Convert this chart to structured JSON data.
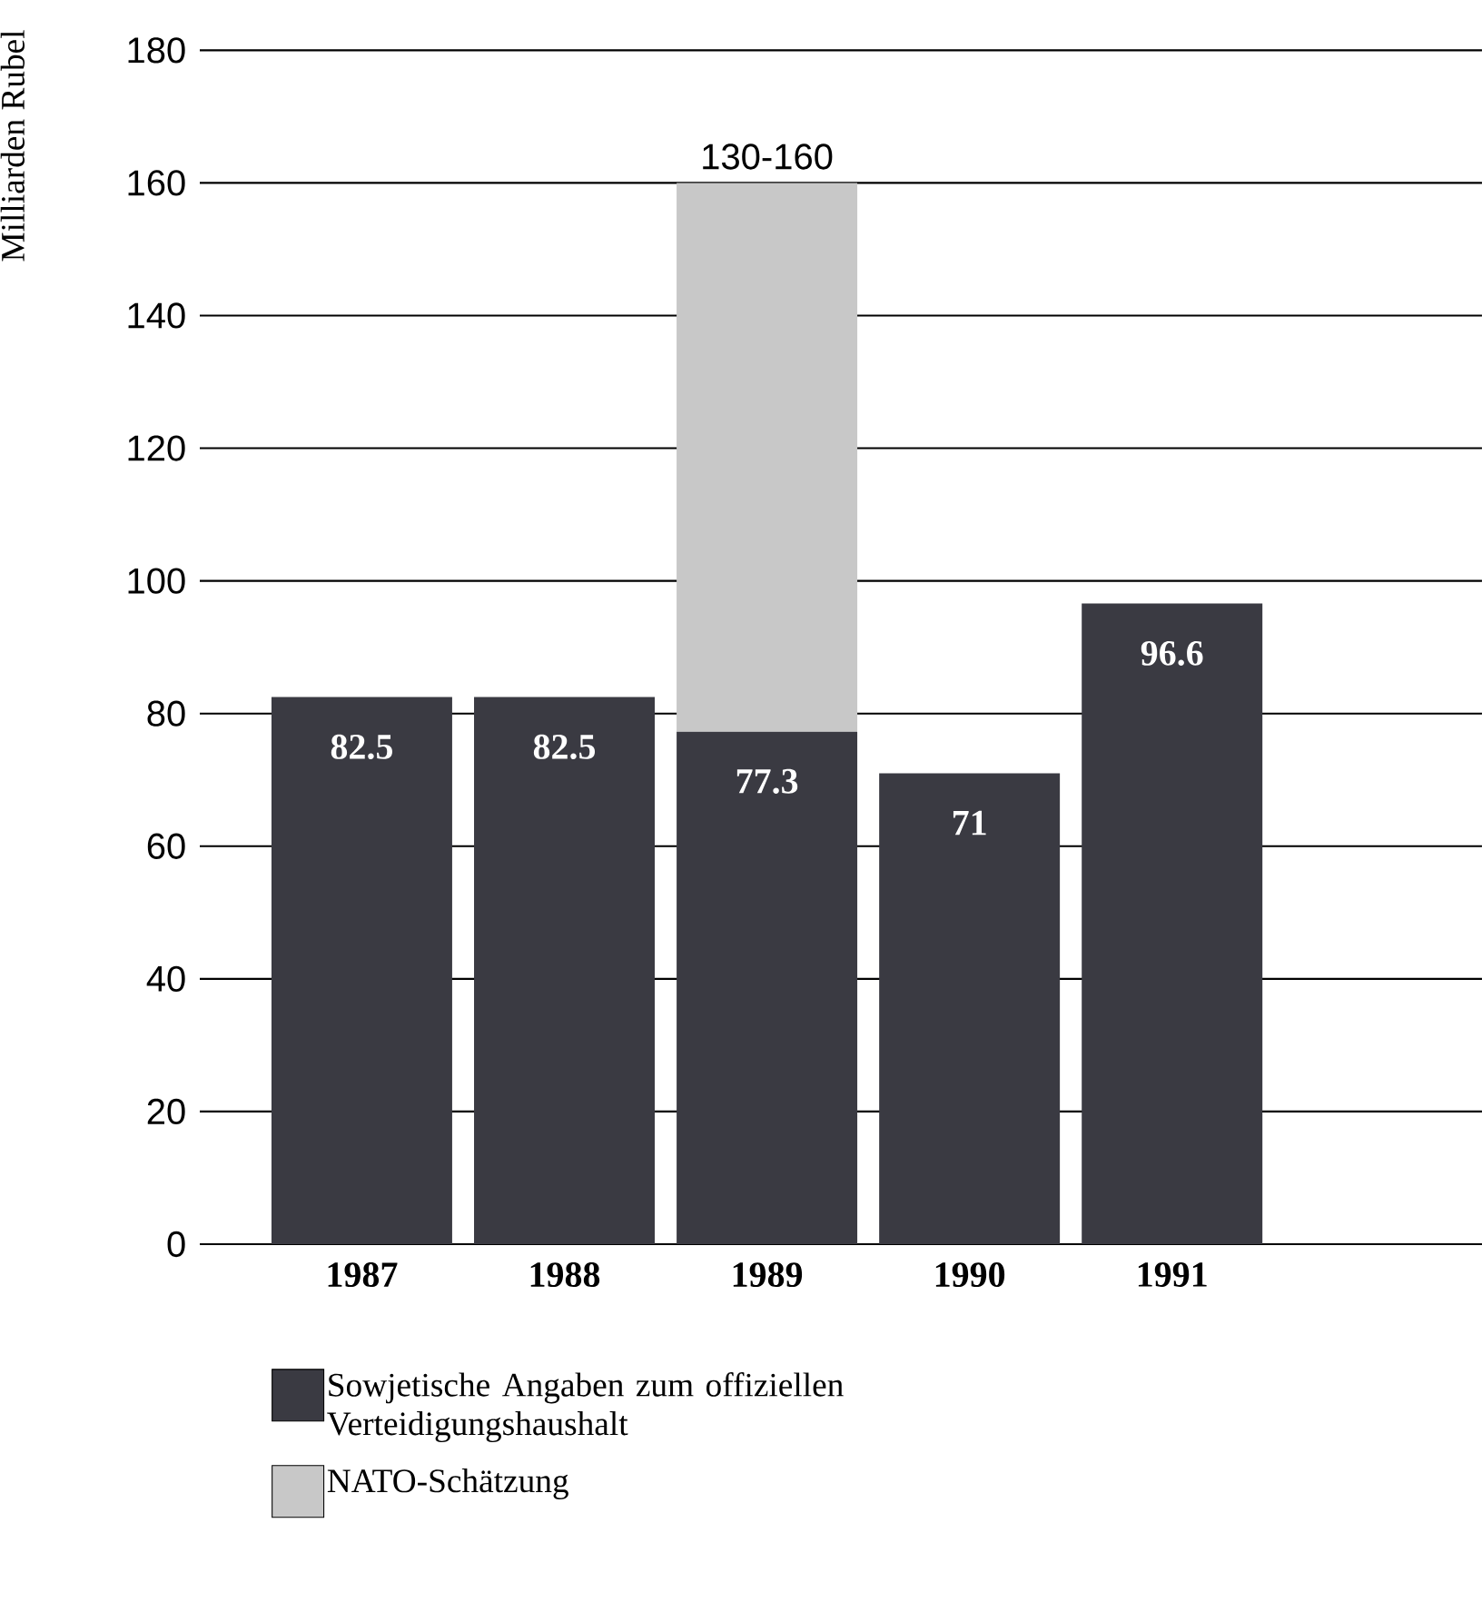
{
  "chart_data": {
    "type": "bar",
    "stacked": true,
    "ylabel": "Milliarden Rubel",
    "categories": [
      "1987",
      "1988",
      "1989",
      "1990",
      "1991"
    ],
    "series": [
      {
        "name": "Sowjetische Angaben zum offiziellen Verteidigungshaushalt",
        "color": "#3a3a42",
        "values": [
          82.5,
          82.5,
          77.3,
          71,
          96.6
        ],
        "value_labels": [
          "82.5",
          "82.5",
          "77.3",
          "71",
          "96.6"
        ]
      },
      {
        "name": "NATO-Schätzung",
        "color": "#c8c8c8",
        "values": [
          null,
          null,
          82.7,
          null,
          null
        ],
        "value_labels": [
          null,
          null,
          "130-160",
          null,
          null
        ]
      }
    ],
    "ylim": [
      0,
      180
    ],
    "yticks": [
      0,
      20,
      40,
      60,
      80,
      100,
      120,
      140,
      160,
      180
    ],
    "grid": "y",
    "legend": "bottom"
  }
}
